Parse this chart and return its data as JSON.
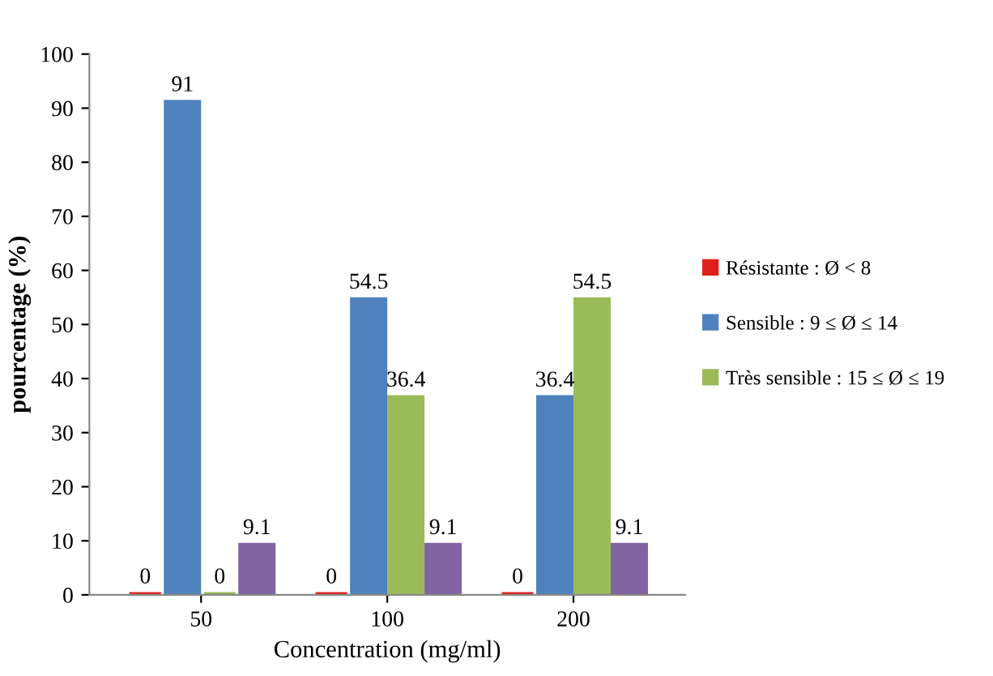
{
  "chart_data": {
    "type": "bar",
    "xlabel": "Concentration (mg/ml)",
    "ylabel": "pourcentage (%)",
    "categories": [
      "50",
      "100",
      "200"
    ],
    "series": [
      {
        "name": "Résistante : Ø < 8",
        "color": "#e0201b",
        "values": [
          0,
          0,
          0
        ]
      },
      {
        "name": "Sensible : 9 ≤ Ø ≤ 14",
        "color": "#4f81bd",
        "values": [
          91,
          54.5,
          36.4
        ]
      },
      {
        "name": "Très sensible : 15 ≤ Ø ≤ 19",
        "color": "#9bbb59",
        "values": [
          0,
          36.4,
          54.5
        ]
      },
      {
        "color": "#8064a2",
        "values": [
          9.1,
          9.1,
          9.1
        ]
      }
    ],
    "ylim": [
      0,
      100
    ],
    "yticks": [
      0,
      10,
      20,
      30,
      40,
      50,
      60,
      70,
      80,
      90,
      100
    ],
    "data_labels": true,
    "legend": "right",
    "grid": false
  }
}
